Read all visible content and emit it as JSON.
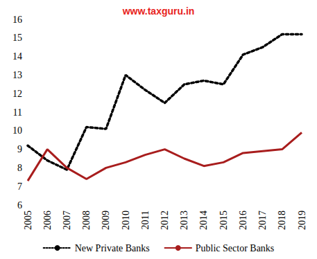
{
  "chart_data": {
    "type": "line",
    "title": "www.taxguru.in",
    "title_color": "#e8231c",
    "categories": [
      "2005",
      "2006",
      "2007",
      "2008",
      "2009",
      "2010",
      "2011",
      "2012",
      "2013",
      "2014",
      "2015",
      "2016",
      "2017",
      "2018",
      "2019"
    ],
    "series": [
      {
        "name": "New Private Banks",
        "color": "#000000",
        "line_style": "dotted",
        "values": [
          9.2,
          8.4,
          7.9,
          10.2,
          10.1,
          13.0,
          12.2,
          11.5,
          12.5,
          12.7,
          12.5,
          14.1,
          14.5,
          15.2,
          15.2
        ]
      },
      {
        "name": "Public Sector Banks",
        "color": "#a81d1d",
        "line_style": "solid",
        "values": [
          7.3,
          9.0,
          8.0,
          7.4,
          8.0,
          8.3,
          8.7,
          9.0,
          8.5,
          8.1,
          8.3,
          8.8,
          8.9,
          9.0,
          9.9
        ]
      }
    ],
    "ylim": [
      6,
      16
    ],
    "yticks": [
      6,
      7,
      8,
      9,
      10,
      11,
      12,
      13,
      14,
      15,
      16
    ],
    "grid": false,
    "legend": "bottom"
  }
}
